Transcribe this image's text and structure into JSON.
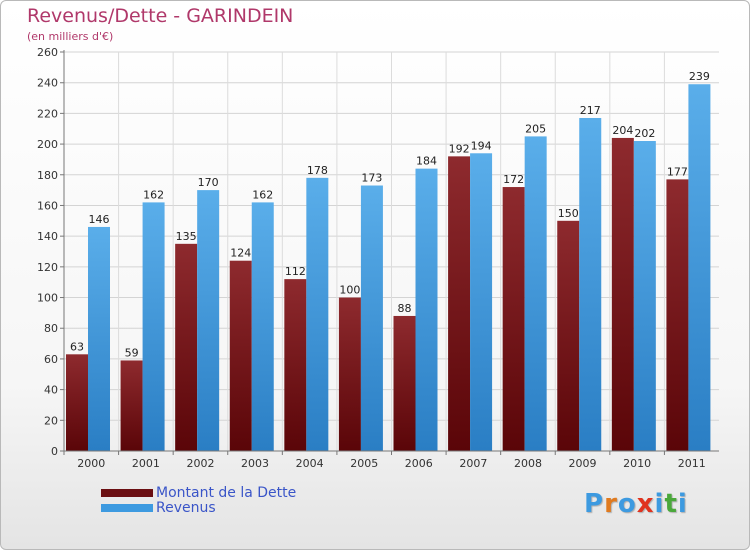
{
  "header": {
    "title": "Revenus/Dette - GARINDEIN",
    "subtitle": "(en milliers d'€)"
  },
  "colors": {
    "title": "#b0386a",
    "dette": "#7a1a1e",
    "revenus": "#3d9ae0",
    "legend_text": "#3a55c8"
  },
  "legend": {
    "items": [
      {
        "label": "Montant de la Dette",
        "color": "#6b0f12"
      },
      {
        "label": "Revenus",
        "color": "#3d9ae0"
      }
    ]
  },
  "logo": {
    "text": "Proxiti",
    "letter_colors": [
      "#3d9ae0",
      "#e07a1f",
      "#3d9ae0",
      "#e0331f",
      "#3d9ae0",
      "#4aa83a",
      "#3d9ae0"
    ]
  },
  "chart_data": {
    "type": "bar",
    "categories": [
      "2000",
      "2001",
      "2002",
      "2003",
      "2004",
      "2005",
      "2006",
      "2007",
      "2008",
      "2009",
      "2010",
      "2011"
    ],
    "series": [
      {
        "name": "Montant de la Dette",
        "values": [
          63,
          59,
          135,
          124,
          112,
          100,
          88,
          192,
          172,
          150,
          204,
          177
        ]
      },
      {
        "name": "Revenus",
        "values": [
          146,
          162,
          170,
          162,
          178,
          173,
          184,
          194,
          205,
          217,
          202,
          239
        ]
      }
    ],
    "yticks": [
      0,
      20,
      40,
      60,
      80,
      100,
      120,
      140,
      160,
      180,
      200,
      220,
      240,
      260
    ],
    "ylim": [
      0,
      260
    ],
    "grid": true,
    "legend_position": "bottom-left"
  }
}
